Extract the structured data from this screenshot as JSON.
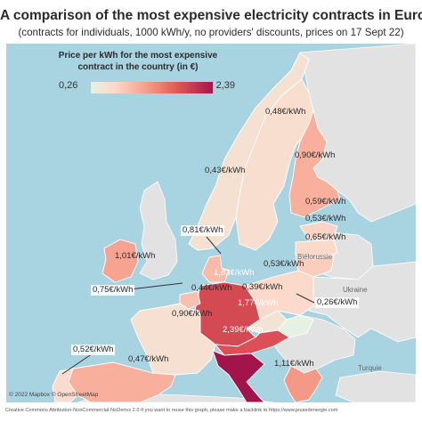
{
  "header": {
    "title": "A comparison of the most expensive electricity contracts in Europe",
    "subtitle": "(contracts for individuals, 1000 kWh/y, no providers' discounts, prices on 17 Sept 22)"
  },
  "legend": {
    "title_line1": "Price per kWh for the most expensive",
    "title_line2": "contract in the country (in €)",
    "min_label": "0,26",
    "max_label": "2,39",
    "min_value": 0.26,
    "max_value": 2.39,
    "color_scale": [
      "#e6f2e1",
      "#fcd9cb",
      "#f6a08c",
      "#e35a56",
      "#a3154a"
    ]
  },
  "colors": {
    "sea": "#a8d3e0",
    "non_data_land": "#e2e2e2",
    "border": "#ffffff",
    "leader_line": "#333333"
  },
  "price_labels": {
    "norway": "0,43€/kWh",
    "sweden": "0,48€/kWh",
    "finland": "0,90€/kWh",
    "estonia": "0,59€/kWh",
    "latvia": "0,53€/kWh",
    "lithuania": "0,65€/kWh",
    "denmark": "0,81€/kWh",
    "ireland": "1,01€/kWh",
    "germany": "1,83€/kWh",
    "poland": "0,53€/kWh",
    "belgium": "0,75€/kWh",
    "france": "0,44€/kWh",
    "czechia": "0,39€/kWh",
    "slovakia": "0,26€/kWh",
    "austria": "1,77€/kWh",
    "spain": "0,90€/kWh",
    "italy": "2,39€/kWh",
    "portugal": "0,52€/kWh",
    "greece": "1,11€/kWh",
    "spain_south": "0,47€/kWh"
  },
  "regions": {
    "belarus": "Biélorussie",
    "ukraine": "Ukraine",
    "turkey": "Turquie"
  },
  "map": {
    "type": "choropleth",
    "unit": "€/kWh",
    "countries": [
      {
        "country": "Norway",
        "label_key": "norway",
        "value": 0.43
      },
      {
        "country": "Sweden",
        "label_key": "sweden",
        "value": 0.48
      },
      {
        "country": "Finland",
        "label_key": "finland",
        "value": 0.9
      },
      {
        "country": "Estonia",
        "label_key": "estonia",
        "value": 0.59
      },
      {
        "country": "Latvia",
        "label_key": "latvia",
        "value": 0.53
      },
      {
        "country": "Lithuania",
        "label_key": "lithuania",
        "value": 0.65
      },
      {
        "country": "Denmark",
        "label_key": "denmark",
        "value": 0.81
      },
      {
        "country": "Ireland",
        "label_key": "ireland",
        "value": 1.01
      },
      {
        "country": "Germany",
        "label_key": "germany",
        "value": 1.83
      },
      {
        "country": "Poland",
        "label_key": "poland",
        "value": 0.53
      },
      {
        "country": "Belgium",
        "label_key": "belgium",
        "value": 0.75
      },
      {
        "country": "France",
        "label_key": "france",
        "value": 0.44
      },
      {
        "country": "Czechia",
        "label_key": "czechia",
        "value": 0.39
      },
      {
        "country": "Slovakia",
        "label_key": "slovakia",
        "value": 0.26
      },
      {
        "country": "Austria",
        "label_key": "austria",
        "value": 1.77
      },
      {
        "country": "Spain",
        "label_key": "spain",
        "value": 0.9
      },
      {
        "country": "Italy",
        "label_key": "italy",
        "value": 2.39
      },
      {
        "country": "Portugal",
        "label_key": "portugal",
        "value": 0.52
      },
      {
        "country": "Greece",
        "label_key": "greece",
        "value": 1.11
      }
    ]
  },
  "attribution": "© 2022 Mapbox © OpenStreetMap",
  "footer": "Creative Commons Attribution-NonCommercial-NoDerivs 2.0 If you want to reuse this graph, please make a backlink to https://www.jeusedenergie.com"
}
